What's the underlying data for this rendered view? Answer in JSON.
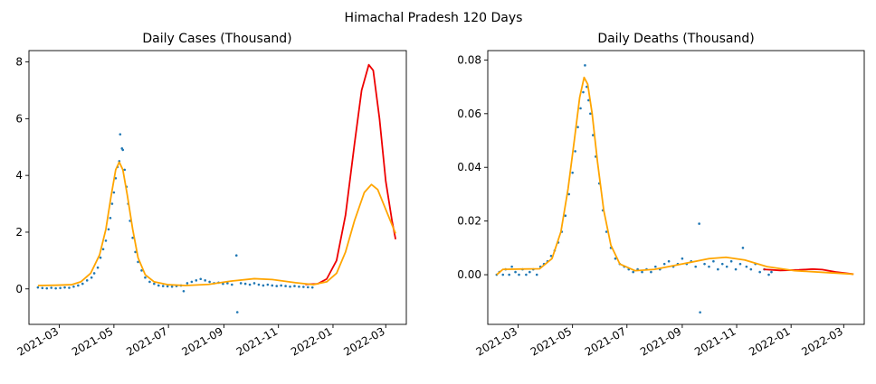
{
  "figure": {
    "suptitle": "Himachal Pradesh 120 Days"
  },
  "x_ticks": [
    "2021-03",
    "2021-05",
    "2021-07",
    "2021-09",
    "2021-11",
    "2022-01",
    "2022-03"
  ],
  "colors": {
    "scatter": "#1f77b4",
    "model_red": "#ee0000",
    "model_orange": "#ffa500"
  },
  "chart_data": [
    {
      "type": "line",
      "title": "Daily Cases (Thousand)",
      "xlabel": "",
      "ylabel": "",
      "x_range": [
        "2021-01-26",
        "2022-03-24"
      ],
      "ylim": [
        -1.25,
        8.4
      ],
      "yticks": [
        0,
        2,
        4,
        6,
        8
      ],
      "ytick_labels": [
        "0",
        "2",
        "4",
        "6",
        "8"
      ],
      "grid": false,
      "series": [
        {
          "kind": "scatter",
          "color": "#1f77b4",
          "points": [
            [
              "2021-02-05",
              0.05
            ],
            [
              "2021-02-10",
              0.03
            ],
            [
              "2021-02-15",
              0.02
            ],
            [
              "2021-02-20",
              0.04
            ],
            [
              "2021-02-25",
              0.02
            ],
            [
              "2021-03-02",
              0.03
            ],
            [
              "2021-03-07",
              0.05
            ],
            [
              "2021-03-12",
              0.04
            ],
            [
              "2021-03-17",
              0.08
            ],
            [
              "2021-03-22",
              0.12
            ],
            [
              "2021-03-27",
              0.18
            ],
            [
              "2021-04-01",
              0.3
            ],
            [
              "2021-04-06",
              0.4
            ],
            [
              "2021-04-09",
              0.55
            ],
            [
              "2021-04-13",
              0.75
            ],
            [
              "2021-04-16",
              1.1
            ],
            [
              "2021-04-19",
              1.4
            ],
            [
              "2021-04-22",
              1.7
            ],
            [
              "2021-04-25",
              2.1
            ],
            [
              "2021-04-27",
              2.5
            ],
            [
              "2021-04-29",
              3.0
            ],
            [
              "2021-05-01",
              3.4
            ],
            [
              "2021-05-03",
              3.9
            ],
            [
              "2021-05-05",
              4.3
            ],
            [
              "2021-05-07",
              4.5
            ],
            [
              "2021-05-08",
              5.45
            ],
            [
              "2021-05-10",
              4.95
            ],
            [
              "2021-05-11",
              4.9
            ],
            [
              "2021-05-13",
              4.2
            ],
            [
              "2021-05-15",
              3.6
            ],
            [
              "2021-05-17",
              3.0
            ],
            [
              "2021-05-19",
              2.4
            ],
            [
              "2021-05-22",
              1.8
            ],
            [
              "2021-05-25",
              1.3
            ],
            [
              "2021-05-28",
              0.95
            ],
            [
              "2021-06-01",
              0.65
            ],
            [
              "2021-06-05",
              0.4
            ],
            [
              "2021-06-10",
              0.25
            ],
            [
              "2021-06-15",
              0.18
            ],
            [
              "2021-06-20",
              0.12
            ],
            [
              "2021-06-25",
              0.1
            ],
            [
              "2021-06-30",
              0.09
            ],
            [
              "2021-07-05",
              0.08
            ],
            [
              "2021-07-10",
              0.1
            ],
            [
              "2021-07-15",
              0.12
            ],
            [
              "2021-07-18",
              -0.08
            ],
            [
              "2021-07-22",
              0.2
            ],
            [
              "2021-07-27",
              0.25
            ],
            [
              "2021-08-01",
              0.3
            ],
            [
              "2021-08-06",
              0.35
            ],
            [
              "2021-08-11",
              0.3
            ],
            [
              "2021-08-16",
              0.25
            ],
            [
              "2021-08-21",
              0.2
            ],
            [
              "2021-08-26",
              0.22
            ],
            [
              "2021-08-31",
              0.18
            ],
            [
              "2021-09-05",
              0.2
            ],
            [
              "2021-09-10",
              0.15
            ],
            [
              "2021-09-15",
              1.18
            ],
            [
              "2021-09-16",
              -0.82
            ],
            [
              "2021-09-20",
              0.2
            ],
            [
              "2021-09-25",
              0.18
            ],
            [
              "2021-09-30",
              0.15
            ],
            [
              "2021-10-05",
              0.2
            ],
            [
              "2021-10-10",
              0.15
            ],
            [
              "2021-10-15",
              0.12
            ],
            [
              "2021-10-20",
              0.15
            ],
            [
              "2021-10-25",
              0.12
            ],
            [
              "2021-10-30",
              0.1
            ],
            [
              "2021-11-04",
              0.12
            ],
            [
              "2021-11-09",
              0.1
            ],
            [
              "2021-11-14",
              0.08
            ],
            [
              "2021-11-19",
              0.1
            ],
            [
              "2021-11-24",
              0.08
            ],
            [
              "2021-11-29",
              0.07
            ],
            [
              "2021-12-04",
              0.06
            ],
            [
              "2021-12-09",
              0.05
            ]
          ]
        },
        {
          "kind": "line",
          "color": "#ee0000",
          "points": [
            [
              "2021-12-01",
              0.16
            ],
            [
              "2021-12-15",
              0.18
            ],
            [
              "2021-12-25",
              0.35
            ],
            [
              "2022-01-05",
              1.0
            ],
            [
              "2022-01-15",
              2.6
            ],
            [
              "2022-01-25",
              5.1
            ],
            [
              "2022-02-02",
              7.0
            ],
            [
              "2022-02-10",
              7.9
            ],
            [
              "2022-02-15",
              7.7
            ],
            [
              "2022-02-22",
              6.0
            ],
            [
              "2022-03-01",
              3.8
            ],
            [
              "2022-03-08",
              2.4
            ],
            [
              "2022-03-12",
              1.75
            ]
          ]
        },
        {
          "kind": "line",
          "color": "#ffa500",
          "points": [
            [
              "2021-02-05",
              0.12
            ],
            [
              "2021-02-25",
              0.13
            ],
            [
              "2021-03-15",
              0.15
            ],
            [
              "2021-03-25",
              0.25
            ],
            [
              "2021-04-05",
              0.55
            ],
            [
              "2021-04-15",
              1.2
            ],
            [
              "2021-04-22",
              2.1
            ],
            [
              "2021-04-28",
              3.3
            ],
            [
              "2021-05-03",
              4.2
            ],
            [
              "2021-05-07",
              4.47
            ],
            [
              "2021-05-11",
              4.2
            ],
            [
              "2021-05-16",
              3.3
            ],
            [
              "2021-05-22",
              2.1
            ],
            [
              "2021-05-28",
              1.1
            ],
            [
              "2021-06-05",
              0.5
            ],
            [
              "2021-06-15",
              0.25
            ],
            [
              "2021-06-30",
              0.15
            ],
            [
              "2021-07-20",
              0.12
            ],
            [
              "2021-08-15",
              0.16
            ],
            [
              "2021-09-10",
              0.28
            ],
            [
              "2021-10-05",
              0.36
            ],
            [
              "2021-10-25",
              0.33
            ],
            [
              "2021-11-20",
              0.22
            ],
            [
              "2021-12-10",
              0.15
            ],
            [
              "2021-12-25",
              0.25
            ],
            [
              "2022-01-05",
              0.55
            ],
            [
              "2022-01-15",
              1.3
            ],
            [
              "2022-01-25",
              2.4
            ],
            [
              "2022-02-05",
              3.4
            ],
            [
              "2022-02-13",
              3.68
            ],
            [
              "2022-02-20",
              3.5
            ],
            [
              "2022-03-01",
              2.8
            ],
            [
              "2022-03-12",
              1.95
            ]
          ]
        }
      ]
    },
    {
      "type": "line",
      "title": "Daily Deaths (Thousand)",
      "xlabel": "",
      "ylabel": "",
      "x_range": [
        "2021-01-26",
        "2022-03-24"
      ],
      "ylim": [
        -0.0185,
        0.0835
      ],
      "yticks": [
        0.0,
        0.02,
        0.04,
        0.06,
        0.08
      ],
      "ytick_labels": [
        "0.00",
        "0.02",
        "0.04",
        "0.06",
        "0.08"
      ],
      "grid": false,
      "series": [
        {
          "kind": "scatter",
          "color": "#1f77b4",
          "points": [
            [
              "2021-02-05",
              0.0
            ],
            [
              "2021-02-08",
              0.001
            ],
            [
              "2021-02-12",
              0.0
            ],
            [
              "2021-02-15",
              0.002
            ],
            [
              "2021-02-19",
              0.0
            ],
            [
              "2021-02-22",
              0.003
            ],
            [
              "2021-02-26",
              0.001
            ],
            [
              "2021-03-02",
              0.0
            ],
            [
              "2021-03-06",
              0.002
            ],
            [
              "2021-03-10",
              0.0
            ],
            [
              "2021-03-14",
              0.001
            ],
            [
              "2021-03-18",
              0.002
            ],
            [
              "2021-03-22",
              0.0
            ],
            [
              "2021-03-26",
              0.003
            ],
            [
              "2021-03-30",
              0.004
            ],
            [
              "2021-04-03",
              0.005
            ],
            [
              "2021-04-07",
              0.007
            ],
            [
              "2021-04-11",
              0.009
            ],
            [
              "2021-04-15",
              0.012
            ],
            [
              "2021-04-19",
              0.016
            ],
            [
              "2021-04-23",
              0.022
            ],
            [
              "2021-04-27",
              0.03
            ],
            [
              "2021-05-01",
              0.038
            ],
            [
              "2021-05-04",
              0.046
            ],
            [
              "2021-05-07",
              0.055
            ],
            [
              "2021-05-10",
              0.062
            ],
            [
              "2021-05-13",
              0.068
            ],
            [
              "2021-05-15",
              0.078
            ],
            [
              "2021-05-17",
              0.07
            ],
            [
              "2021-05-19",
              0.065
            ],
            [
              "2021-05-21",
              0.06
            ],
            [
              "2021-05-24",
              0.052
            ],
            [
              "2021-05-27",
              0.044
            ],
            [
              "2021-05-31",
              0.034
            ],
            [
              "2021-06-04",
              0.024
            ],
            [
              "2021-06-08",
              0.016
            ],
            [
              "2021-06-13",
              0.01
            ],
            [
              "2021-06-18",
              0.006
            ],
            [
              "2021-06-23",
              0.004
            ],
            [
              "2021-06-28",
              0.003
            ],
            [
              "2021-07-03",
              0.002
            ],
            [
              "2021-07-08",
              0.001
            ],
            [
              "2021-07-13",
              0.002
            ],
            [
              "2021-07-18",
              0.001
            ],
            [
              "2021-07-23",
              0.002
            ],
            [
              "2021-07-28",
              0.001
            ],
            [
              "2021-08-02",
              0.003
            ],
            [
              "2021-08-07",
              0.002
            ],
            [
              "2021-08-12",
              0.004
            ],
            [
              "2021-08-17",
              0.005
            ],
            [
              "2021-08-22",
              0.003
            ],
            [
              "2021-08-27",
              0.004
            ],
            [
              "2021-09-01",
              0.006
            ],
            [
              "2021-09-06",
              0.004
            ],
            [
              "2021-09-11",
              0.005
            ],
            [
              "2021-09-16",
              0.003
            ],
            [
              "2021-09-20",
              0.019
            ],
            [
              "2021-09-21",
              -0.014
            ],
            [
              "2021-09-26",
              0.004
            ],
            [
              "2021-10-01",
              0.003
            ],
            [
              "2021-10-06",
              0.005
            ],
            [
              "2021-10-11",
              0.002
            ],
            [
              "2021-10-16",
              0.004
            ],
            [
              "2021-10-21",
              0.003
            ],
            [
              "2021-10-26",
              0.005
            ],
            [
              "2021-10-31",
              0.002
            ],
            [
              "2021-11-05",
              0.004
            ],
            [
              "2021-11-08",
              0.01
            ],
            [
              "2021-11-12",
              0.003
            ],
            [
              "2021-11-17",
              0.002
            ],
            [
              "2021-11-22",
              0.004
            ],
            [
              "2021-11-27",
              0.001
            ],
            [
              "2021-12-02",
              0.002
            ],
            [
              "2021-12-07",
              0.0
            ],
            [
              "2021-12-10",
              0.001
            ]
          ]
        },
        {
          "kind": "line",
          "color": "#ee0000",
          "points": [
            [
              "2021-12-01",
              0.002
            ],
            [
              "2021-12-20",
              0.0016
            ],
            [
              "2022-01-10",
              0.0018
            ],
            [
              "2022-01-25",
              0.0021
            ],
            [
              "2022-02-05",
              0.0019
            ],
            [
              "2022-02-20",
              0.001
            ],
            [
              "2022-03-12",
              0.0002
            ]
          ]
        },
        {
          "kind": "line",
          "color": "#ffa500",
          "points": [
            [
              "2021-02-05",
              0.0
            ],
            [
              "2021-02-12",
              0.002
            ],
            [
              "2021-03-01",
              0.0021
            ],
            [
              "2021-03-25",
              0.0022
            ],
            [
              "2021-04-08",
              0.006
            ],
            [
              "2021-04-18",
              0.016
            ],
            [
              "2021-04-26",
              0.032
            ],
            [
              "2021-05-03",
              0.05
            ],
            [
              "2021-05-09",
              0.066
            ],
            [
              "2021-05-14",
              0.0735
            ],
            [
              "2021-05-18",
              0.071
            ],
            [
              "2021-05-23",
              0.06
            ],
            [
              "2021-05-29",
              0.042
            ],
            [
              "2021-06-05",
              0.024
            ],
            [
              "2021-06-13",
              0.011
            ],
            [
              "2021-06-23",
              0.004
            ],
            [
              "2021-07-10",
              0.0015
            ],
            [
              "2021-08-01",
              0.002
            ],
            [
              "2021-09-01",
              0.004
            ],
            [
              "2021-10-01",
              0.006
            ],
            [
              "2021-10-20",
              0.0065
            ],
            [
              "2021-11-10",
              0.0055
            ],
            [
              "2021-12-05",
              0.003
            ],
            [
              "2022-01-05",
              0.0015
            ],
            [
              "2022-02-10",
              0.0008
            ],
            [
              "2022-03-12",
              0.0002
            ]
          ]
        }
      ]
    }
  ]
}
